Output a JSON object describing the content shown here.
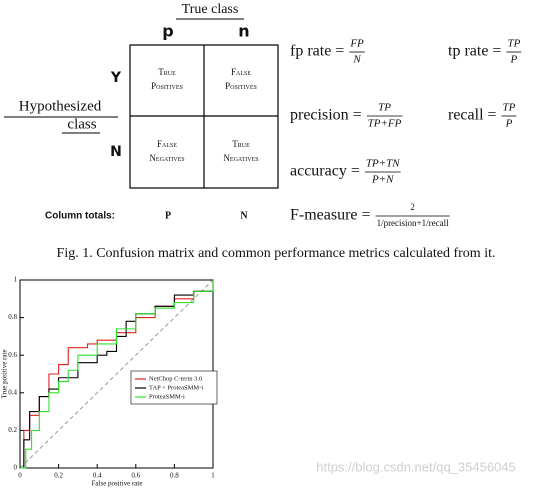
{
  "confusion": {
    "true_class": "True class",
    "columns": [
      "p",
      "n"
    ],
    "rows": [
      "Y",
      "N"
    ],
    "hypothesized": [
      "Hypothesized",
      "class"
    ],
    "cells": [
      [
        "True",
        "Positives"
      ],
      [
        "False",
        "Positives"
      ],
      [
        "False",
        "Negatives"
      ],
      [
        "True",
        "Negatives"
      ]
    ],
    "column_totals": {
      "label": "Column totals:",
      "values": [
        "P",
        "N"
      ]
    }
  },
  "metrics": [
    {
      "lhs": "fp rate =",
      "num": "FP",
      "den": "N"
    },
    {
      "lhs": "tp rate =",
      "num": "TP",
      "den": "P"
    },
    {
      "lhs": "precision =",
      "num": "TP",
      "den": "TP+FP"
    },
    {
      "lhs": "recall =",
      "num": "TP",
      "den": "P"
    },
    {
      "lhs": "accuracy =",
      "num": "TP+TN",
      "den": "P+N"
    },
    {
      "lhs": "F-measure =",
      "num": "2",
      "den": "1/precision+1/recall"
    }
  ],
  "caption": "Fig. 1. Confusion matrix and common performance metrics calculated from it.",
  "watermark": "https://blog.csdn.net/qq_35456045",
  "chart_data": {
    "type": "line",
    "xlabel": "False positive rate",
    "ylabel": "True positive rate",
    "xlim": [
      0,
      1
    ],
    "ylim": [
      0,
      1
    ],
    "xticks": [
      0,
      0.2,
      0.4,
      0.6,
      0.8,
      1
    ],
    "yticks": [
      0,
      0.2,
      0.4,
      0.6,
      0.8,
      1
    ],
    "series": [
      {
        "name": "NetChop C-term 3.0",
        "color": "#e02020",
        "x": [
          0,
          0.02,
          0.05,
          0.1,
          0.15,
          0.2,
          0.25,
          0.3,
          0.35,
          0.4,
          0.5,
          0.6,
          0.7,
          0.8,
          0.9,
          1
        ],
        "values": [
          0,
          0.2,
          0.28,
          0.38,
          0.5,
          0.55,
          0.64,
          0.64,
          0.66,
          0.68,
          0.72,
          0.8,
          0.86,
          0.9,
          0.94,
          1
        ]
      },
      {
        "name": "TAP + ProteaSMM-i",
        "color": "#000000",
        "x": [
          0,
          0.02,
          0.05,
          0.1,
          0.15,
          0.2,
          0.3,
          0.4,
          0.45,
          0.5,
          0.55,
          0.6,
          0.7,
          0.8,
          0.9,
          1
        ],
        "values": [
          0,
          0.15,
          0.3,
          0.38,
          0.42,
          0.48,
          0.56,
          0.6,
          0.62,
          0.7,
          0.78,
          0.82,
          0.86,
          0.92,
          0.94,
          1
        ]
      },
      {
        "name": "ProteaSMM-i",
        "color": "#30e030",
        "x": [
          0,
          0.03,
          0.06,
          0.1,
          0.15,
          0.2,
          0.25,
          0.3,
          0.4,
          0.5,
          0.6,
          0.7,
          0.8,
          0.9,
          1
        ],
        "values": [
          0,
          0.1,
          0.2,
          0.3,
          0.4,
          0.46,
          0.52,
          0.6,
          0.66,
          0.74,
          0.82,
          0.85,
          0.88,
          0.94,
          1
        ]
      }
    ]
  }
}
